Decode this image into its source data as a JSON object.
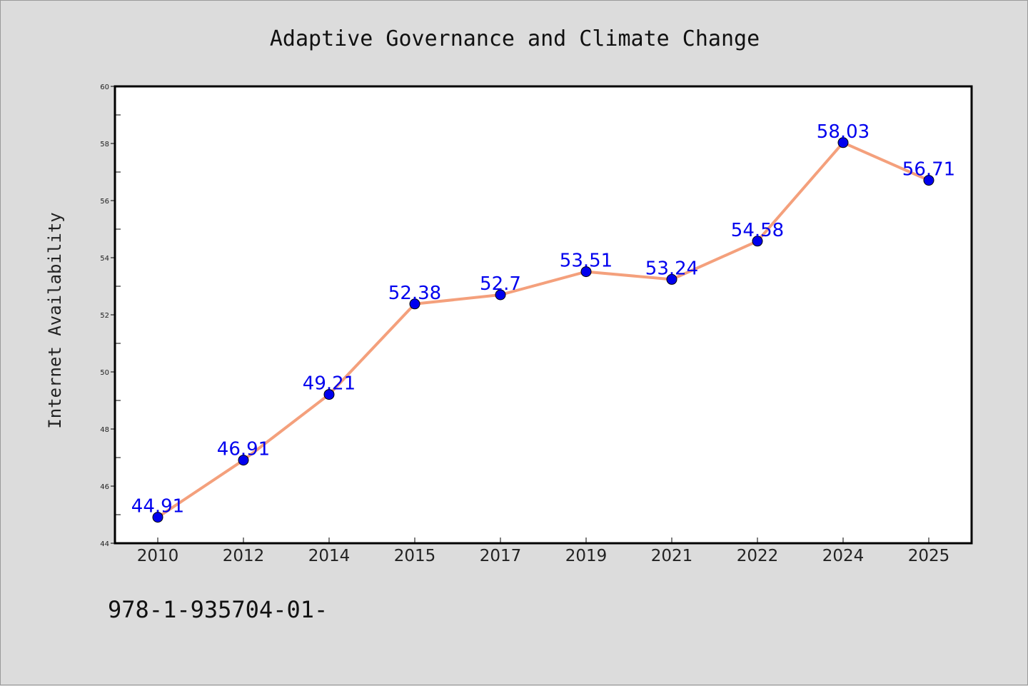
{
  "chart_data": {
    "type": "line",
    "title": "Adaptive Governance and Climate Change",
    "ylabel": "Internet Availability",
    "xlabel": "",
    "categories": [
      "2010",
      "2012",
      "2014",
      "2015",
      "2017",
      "2019",
      "2021",
      "2022",
      "2024",
      "2025"
    ],
    "series": [
      {
        "values": [
          44.91,
          46.91,
          49.21,
          52.38,
          52.7,
          53.51,
          53.24,
          54.58,
          58.03,
          56.71
        ],
        "data_labels": [
          "44.91",
          "46.91",
          "49.21",
          "52.38",
          "52.7",
          "53.51",
          "53.24",
          "54.58",
          "58.03",
          "56.71"
        ],
        "line_color": "#f4a07c",
        "marker_color": "#0000ee",
        "label_color": "#0000ee"
      }
    ],
    "ylim": [
      44,
      60
    ],
    "yticks": [
      "44",
      "46",
      "48",
      "50",
      "52",
      "54",
      "56",
      "58",
      "60"
    ],
    "grid": false,
    "legend": "none"
  },
  "footer": {
    "text": "978-1-935704-01-"
  },
  "colors": {
    "background": "#dcdcdc",
    "plot_background": "#ffffff",
    "axis": "#000000"
  }
}
